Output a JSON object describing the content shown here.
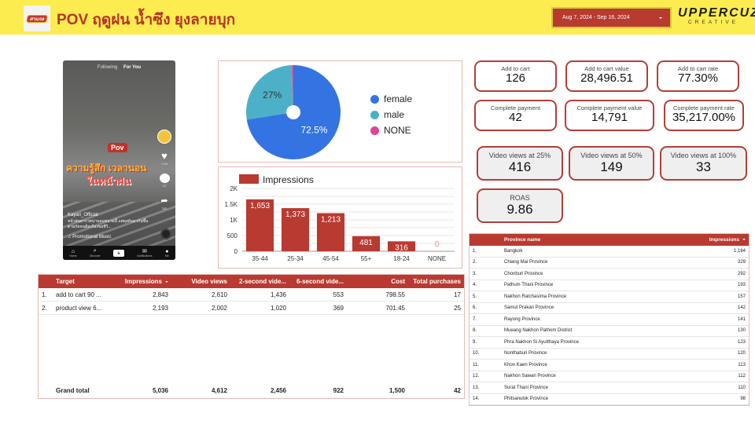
{
  "header": {
    "logo_text": "ศาแกล",
    "title": "POV ฤดูฝน น้ำซึง ยุงลายบุก",
    "date_range": "Aug 7, 2024 - Sep 16, 2024",
    "brand_name": "UPPERCUZ",
    "brand_sub": "CREATIVE"
  },
  "video": {
    "tab_following": "Following",
    "tab_for_you": "For You",
    "pov_tag": "Pov",
    "caption_line1": "ความรู้สึก เวลานอน",
    "caption_line2": "ในหน้าฝน",
    "username": "Kayari_Official",
    "description": "หน้าฝนอากาศน่านอนขนาดนี้ แต่ยุงดันมากันซึ้นตามกัดจนต้องร้องขอชีวิ...",
    "music": "♫ Promotional Music",
    "like_count": "7116",
    "comment_count": "12",
    "share_count": "252",
    "nav": [
      "Home",
      "Discover",
      "+",
      "Notifications",
      "Me"
    ]
  },
  "gender_pie": {
    "colors": {
      "female": "#3473e2",
      "male": "#4cb1c8",
      "NONE": "#e0439b"
    }
  },
  "age_bar": {
    "bar_color": "#b83a31"
  },
  "chart_data": [
    {
      "type": "pie",
      "title": "",
      "labels": [
        "female",
        "male",
        "NONE"
      ],
      "values": [
        72.5,
        27.0,
        0.5
      ],
      "data_labels": [
        "72.5%",
        "27%",
        ""
      ],
      "legend": "right",
      "donut_hole": true
    },
    {
      "type": "bar",
      "title": "",
      "categories": [
        "35-44",
        "25-34",
        "45-54",
        "55+",
        "18-24",
        "NONE"
      ],
      "series": [
        {
          "name": "Impressions",
          "values": [
            1653,
            1373,
            1213,
            481,
            316,
            0
          ]
        }
      ],
      "data_labels": [
        "1,653",
        "1,373",
        "1,213",
        "481",
        "316",
        "0"
      ],
      "yticks": [
        "0",
        "500",
        "1K",
        "1.5K",
        "2K"
      ],
      "ylim": [
        0,
        2000
      ],
      "grid": true,
      "legend": "top-left",
      "xlabel": "",
      "ylabel": ""
    }
  ],
  "kpis": [
    {
      "label": "Add to cart",
      "value": "126"
    },
    {
      "label": "Add to cart value",
      "value": "28,496.51"
    },
    {
      "label": "Add to cart rate",
      "value": "77.30%"
    },
    {
      "label": "Complete payment",
      "value": "42"
    },
    {
      "label": "Complete payment value",
      "value": "14,791"
    },
    {
      "label": "Complete payment rate",
      "value": "35,217.00%"
    },
    {
      "label": "Video views at 25%",
      "value": "416"
    },
    {
      "label": "Video views at 50%",
      "value": "149"
    },
    {
      "label": "Video views at 100%",
      "value": "33"
    },
    {
      "label": "ROAS",
      "value": "9.86"
    }
  ],
  "target_table": {
    "headers": [
      "Target",
      "Impressions",
      "Video views",
      "2-second vide...",
      "6-second vide...",
      "Cost",
      "Total purchases"
    ],
    "rows": [
      {
        "idx": "1.",
        "target": "add to cart 90 ...",
        "impressions": "2,843",
        "video_views": "2,610",
        "two_sec": "1,436",
        "six_sec": "553",
        "cost": "798.55",
        "purchases": "17"
      },
      {
        "idx": "2.",
        "target": "product view 6...",
        "impressions": "2,193",
        "video_views": "2,002",
        "two_sec": "1,020",
        "six_sec": "369",
        "cost": "701.45",
        "purchases": "25"
      }
    ],
    "total": {
      "label": "Grand total",
      "impressions": "5,036",
      "video_views": "4,612",
      "two_sec": "2,456",
      "six_sec": "922",
      "cost": "1,500",
      "purchases": "42"
    }
  },
  "province_table": {
    "headers": [
      "Province name",
      "Impressions"
    ],
    "rows": [
      {
        "idx": "1.",
        "name": "Bangkok",
        "value": "1,164"
      },
      {
        "idx": "2.",
        "name": "Chiang Mai Province",
        "value": "329"
      },
      {
        "idx": "3.",
        "name": "Chonburi Province",
        "value": "292"
      },
      {
        "idx": "4.",
        "name": "Pathum Thani Province",
        "value": "193"
      },
      {
        "idx": "5.",
        "name": "Nakhon Ratchasima Province",
        "value": "157"
      },
      {
        "idx": "6.",
        "name": "Samut Prakan Province",
        "value": "142"
      },
      {
        "idx": "7.",
        "name": "Rayong Province",
        "value": "141"
      },
      {
        "idx": "8.",
        "name": "Mueang Nakhon Pathom District",
        "value": "130"
      },
      {
        "idx": "9.",
        "name": "Phra Nakhon Si Ayutthaya Province",
        "value": "123"
      },
      {
        "idx": "10.",
        "name": "Nonthaburi Province",
        "value": "120"
      },
      {
        "idx": "11.",
        "name": "Khon Kaen Province",
        "value": "113"
      },
      {
        "idx": "12.",
        "name": "Nakhon Sawan Province",
        "value": "112"
      },
      {
        "idx": "13.",
        "name": "Surat Thani Province",
        "value": "110"
      },
      {
        "idx": "14.",
        "name": "Phitsanulok Province",
        "value": "98"
      }
    ]
  }
}
